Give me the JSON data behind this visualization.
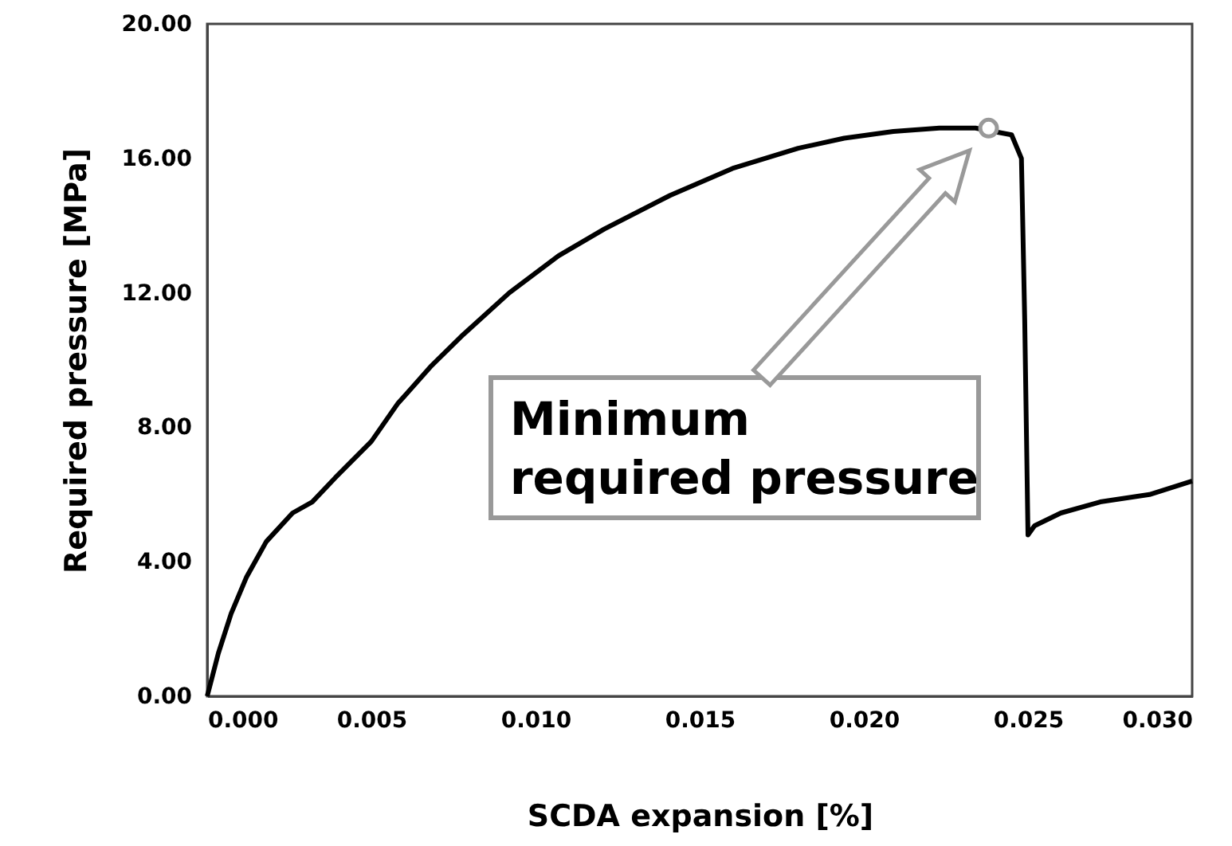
{
  "chart_data": {
    "type": "line",
    "xlabel": "SCDA expansion [%]",
    "ylabel": "Required pressure [MPa]",
    "x": [
      0,
      0.00034,
      0.00073,
      0.0012,
      0.0018,
      0.0026,
      0.0032,
      0.0039,
      0.005,
      0.0058,
      0.0068,
      0.0078,
      0.0092,
      0.0107,
      0.0121,
      0.0141,
      0.016,
      0.018,
      0.0194,
      0.0209,
      0.0223,
      0.0234,
      0.0245,
      0.0248,
      0.0249,
      0.025,
      0.0252,
      0.026,
      0.0272,
      0.0287,
      0.03
    ],
    "series": [
      {
        "color": "#000000",
        "marker": "none",
        "values": [
          0,
          1.28,
          2.46,
          3.55,
          4.6,
          5.45,
          5.78,
          6.5,
          7.58,
          8.7,
          9.8,
          10.76,
          12.0,
          13.1,
          13.9,
          14.9,
          15.7,
          16.3,
          16.6,
          16.8,
          16.9,
          16.9,
          16.7,
          16.0,
          11.2,
          4.8,
          5.07,
          5.45,
          5.78,
          6.0,
          6.4
        ]
      },
      {
        "type": "scatter",
        "color": "#999999",
        "marker": "circle",
        "x": [
          0.0238
        ],
        "values": [
          16.9
        ]
      }
    ],
    "xlim": [
      0,
      0.03
    ],
    "ylim": [
      0,
      20
    ],
    "xticks": [
      {
        "value": 0,
        "label": "0.000"
      },
      {
        "value": 0.005,
        "label": "0.005"
      },
      {
        "value": 0.01,
        "label": "0.010"
      },
      {
        "value": 0.015,
        "label": "0.015"
      },
      {
        "value": 0.02,
        "label": "0.020"
      },
      {
        "value": 0.025,
        "label": "0.025"
      },
      {
        "value": 0.03,
        "label": "0.030"
      }
    ],
    "yticks": [
      {
        "value": 0,
        "label": "0.00"
      },
      {
        "value": 4,
        "label": "4.00"
      },
      {
        "value": 8,
        "label": "8.00"
      },
      {
        "value": 12,
        "label": "12.00"
      },
      {
        "value": 16,
        "label": "16.00"
      },
      {
        "value": 20,
        "label": "20.00"
      }
    ],
    "annotations": [
      "Minimum required pressure"
    ]
  }
}
